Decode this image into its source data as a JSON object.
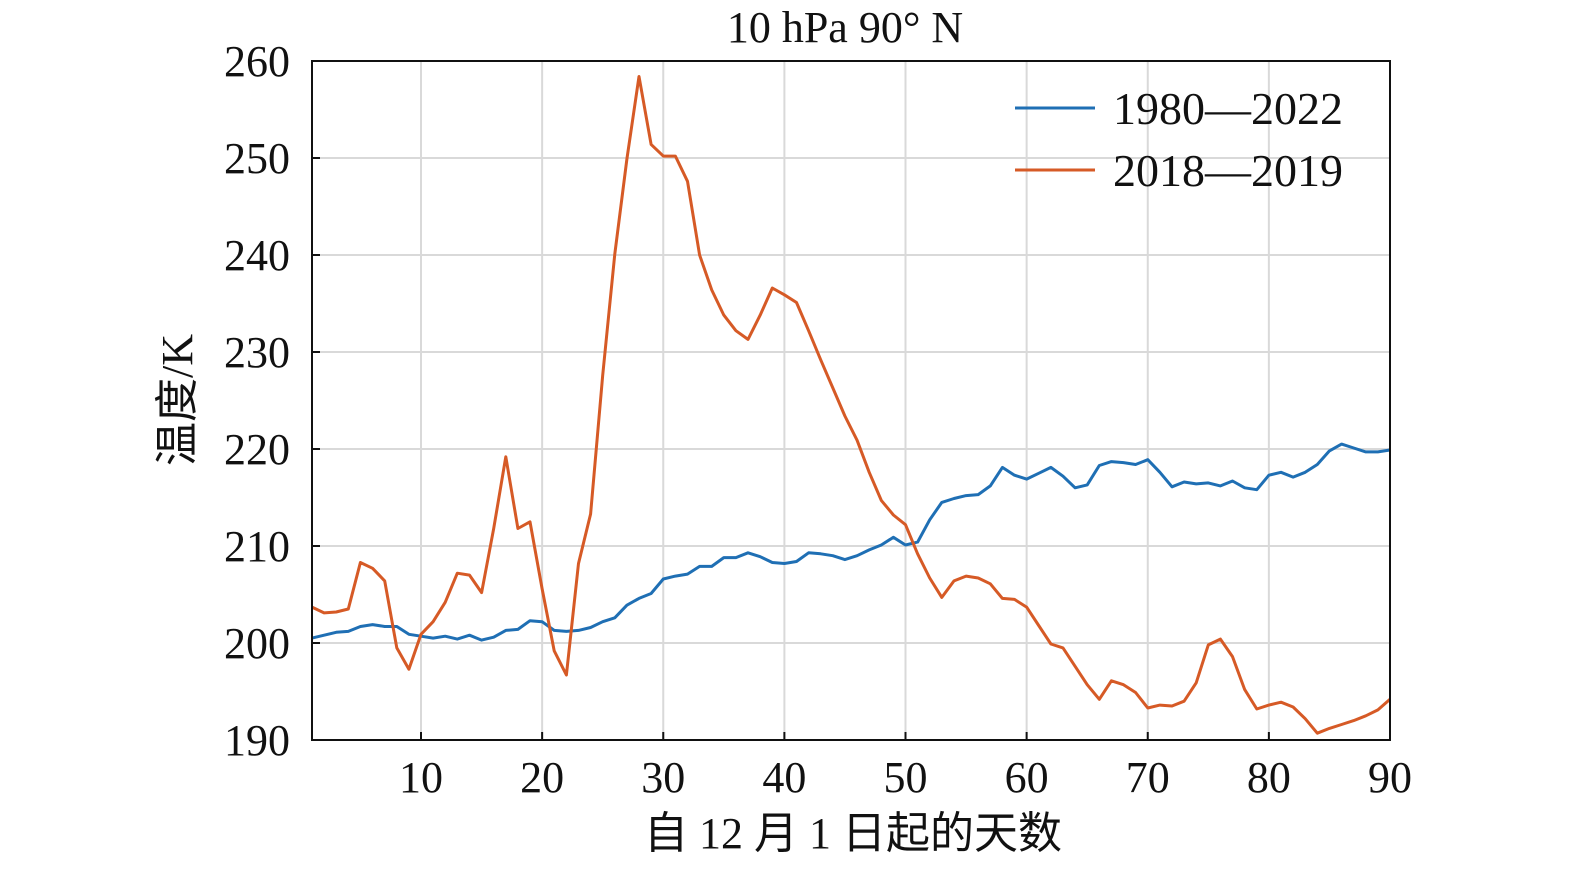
{
  "chart_data": {
    "type": "line",
    "title": "10 hPa 90° N",
    "xlabel": "自 12 月 1 日起的天数",
    "ylabel": "温度/K",
    "xlim": [
      1,
      90
    ],
    "ylim": [
      190,
      260
    ],
    "x_ticks": [
      10,
      20,
      30,
      40,
      50,
      60,
      70,
      80,
      90
    ],
    "y_ticks": [
      190,
      200,
      210,
      220,
      230,
      240,
      250,
      260
    ],
    "x_tick_labels": [
      "10",
      "20",
      "30",
      "40",
      "50",
      "60",
      "70",
      "80",
      "90"
    ],
    "y_tick_labels": [
      "190",
      "200",
      "210",
      "220",
      "230",
      "240",
      "250",
      "260"
    ],
    "grid": true,
    "legend_position": "top-right",
    "x": [
      1,
      2,
      3,
      4,
      5,
      6,
      7,
      8,
      9,
      10,
      11,
      12,
      13,
      14,
      15,
      16,
      17,
      18,
      19,
      20,
      21,
      22,
      23,
      24,
      25,
      26,
      27,
      28,
      29,
      30,
      31,
      32,
      33,
      34,
      35,
      36,
      37,
      38,
      39,
      40,
      41,
      42,
      43,
      44,
      45,
      46,
      47,
      48,
      49,
      50,
      51,
      52,
      53,
      54,
      55,
      56,
      57,
      58,
      59,
      60,
      61,
      62,
      63,
      64,
      65,
      66,
      67,
      68,
      69,
      70,
      71,
      72,
      73,
      74,
      75,
      76,
      77,
      78,
      79,
      80,
      81,
      82,
      83,
      84,
      85,
      86,
      87,
      88,
      89,
      90
    ],
    "series": [
      {
        "name": "1980—2022",
        "color": "#1f6fb4",
        "values": [
          200.5,
          200.8,
          201.1,
          201.2,
          201.7,
          201.9,
          201.7,
          201.7,
          200.9,
          200.7,
          200.5,
          200.7,
          200.4,
          200.8,
          200.3,
          200.6,
          201.3,
          201.4,
          202.3,
          202.2,
          201.3,
          201.2,
          201.3,
          201.6,
          202.2,
          202.6,
          203.9,
          204.6,
          205.1,
          206.6,
          206.9,
          207.1,
          207.9,
          207.9,
          208.8,
          208.8,
          209.3,
          208.9,
          208.3,
          208.2,
          208.4,
          209.3,
          209.2,
          209.0,
          208.6,
          209.0,
          209.6,
          210.1,
          210.9,
          210.1,
          210.4,
          212.7,
          214.5,
          214.9,
          215.2,
          215.3,
          216.2,
          218.1,
          217.3,
          216.9,
          217.5,
          218.1,
          217.2,
          216.0,
          216.3,
          218.3,
          218.7,
          218.6,
          218.4,
          218.9,
          217.6,
          216.1,
          216.6,
          216.4,
          216.5,
          216.2,
          216.7,
          216.0,
          215.8,
          217.3,
          217.6,
          217.1,
          217.6,
          218.4,
          219.8,
          220.5,
          220.1,
          219.7,
          219.7,
          219.9
        ]
      },
      {
        "name": "2018—2019",
        "color": "#d65a26",
        "values": [
          203.7,
          203.1,
          203.2,
          203.5,
          208.3,
          207.7,
          206.4,
          199.5,
          197.3,
          200.9,
          202.2,
          204.2,
          207.2,
          207.0,
          205.2,
          211.8,
          219.2,
          211.8,
          212.5,
          205.6,
          199.2,
          196.7,
          208.2,
          213.3,
          227.6,
          240.1,
          249.9,
          258.4,
          251.4,
          250.2,
          250.2,
          247.6,
          240.0,
          236.4,
          233.8,
          232.2,
          231.3,
          233.8,
          236.6,
          235.9,
          235.1,
          232.2,
          229.2,
          226.3,
          223.4,
          220.9,
          217.6,
          214.7,
          213.2,
          212.2,
          209.2,
          206.7,
          204.7,
          206.4,
          206.9,
          206.7,
          206.1,
          204.6,
          204.5,
          203.7,
          201.8,
          199.9,
          199.5,
          197.6,
          195.7,
          194.2,
          196.1,
          195.7,
          194.9,
          193.3,
          193.6,
          193.5,
          194.0,
          195.9,
          199.8,
          200.4,
          198.6,
          195.2,
          193.2,
          193.6,
          193.9,
          193.4,
          192.2,
          190.7,
          191.2,
          191.6,
          192.0,
          192.5,
          193.1,
          194.2
        ]
      }
    ]
  }
}
